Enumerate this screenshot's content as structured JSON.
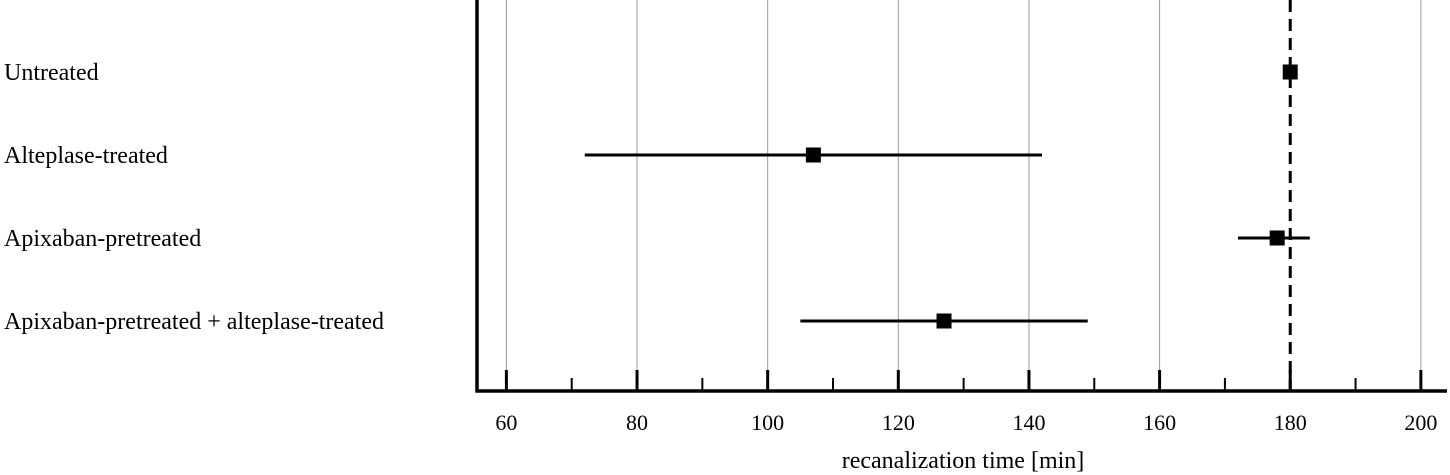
{
  "chart_data": {
    "type": "forest",
    "xlabel": "recanalization time [min]",
    "xlim": [
      55.5,
      204
    ],
    "major_ticks": [
      60,
      80,
      100,
      120,
      140,
      160,
      180,
      200
    ],
    "minor_ticks": [
      70,
      90,
      110,
      130,
      150,
      170,
      190
    ],
    "grid": "vertical",
    "reference_line": 180,
    "rows": [
      {
        "label": "Untreated",
        "value": 180,
        "lower": 180,
        "upper": 180
      },
      {
        "label": "Alteplase-treated",
        "value": 107,
        "lower": 72,
        "upper": 142
      },
      {
        "label": "Apixaban-pretreated",
        "value": 178,
        "lower": 172,
        "upper": 183
      },
      {
        "label": "Apixaban-pretreated + alteplase-treated",
        "value": 127,
        "lower": 105,
        "upper": 149
      }
    ]
  }
}
